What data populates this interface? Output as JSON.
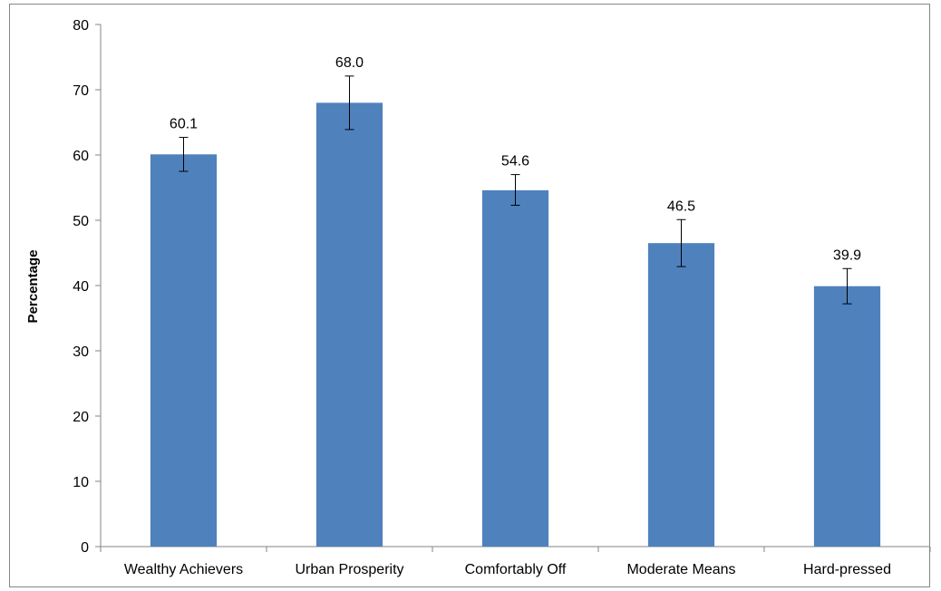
{
  "chart_data": {
    "type": "bar",
    "title": "",
    "xlabel": "",
    "ylabel": "Percentage",
    "ylim": [
      0,
      80
    ],
    "yticks": [
      0,
      10,
      20,
      30,
      40,
      50,
      60,
      70,
      80
    ],
    "grid": false,
    "legend": "none",
    "bar_color": "#4F81BD",
    "categories": [
      "Wealthy Achievers",
      "Urban Prosperity",
      "Comfortably Off",
      "Moderate Means",
      "Hard-pressed"
    ],
    "values": [
      60.1,
      68.0,
      54.6,
      46.5,
      39.9
    ],
    "data_labels": [
      "60.1",
      "68.0",
      "54.6",
      "46.5",
      "39.9"
    ],
    "error_low": [
      57.5,
      63.9,
      52.3,
      42.9,
      37.2
    ],
    "error_high": [
      62.7,
      72.1,
      57.0,
      50.1,
      42.6
    ]
  }
}
